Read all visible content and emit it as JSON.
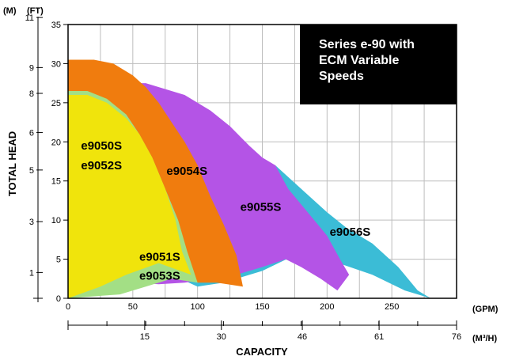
{
  "chart_data": {
    "type": "area",
    "title_lines": [
      "Series e-90 with",
      "ECM Variable",
      "Speeds"
    ],
    "xlabel": "CAPACITY",
    "ylabel": "TOTAL HEAD",
    "x_unit": "(GPM)",
    "x2_unit": "(M³/H)",
    "y_unit_ft": "(FT)",
    "y_unit_m": "(M)",
    "xlim": [
      0,
      300
    ],
    "ylim": [
      0,
      35
    ],
    "grid": true,
    "x_ticks": [
      0,
      50,
      100,
      150,
      200,
      250
    ],
    "x_tick_labels": [
      "0",
      "50",
      "100",
      "150",
      "200",
      "250"
    ],
    "x2_ticks": [
      {
        "gpm": 66.3,
        "label": "15"
      },
      {
        "gpm": 132.6,
        "label": "30"
      },
      {
        "gpm": 202.6,
        "label": "46"
      },
      {
        "gpm": 269.0,
        "label": "61"
      },
      {
        "gpm": 336.0,
        "label": "76"
      }
    ],
    "y_ticks": [
      0,
      5,
      10,
      15,
      20,
      25,
      30,
      35
    ],
    "y_tick_labels": [
      "0",
      "5",
      "10",
      "15",
      "20",
      "25",
      "30",
      "35"
    ],
    "m_ticks": [
      {
        "ft": 3.3,
        "label": "1"
      },
      {
        "ft": 9.8,
        "label": "3"
      },
      {
        "ft": 16.4,
        "label": "5"
      },
      {
        "ft": 21.2,
        "label": "6"
      },
      {
        "ft": 26.2,
        "label": "8"
      },
      {
        "ft": 29.5,
        "label": "9"
      },
      {
        "ft": 35.9,
        "label": "11"
      }
    ],
    "series": [
      {
        "name": "e9056S",
        "color": "#3bbcd6",
        "label_pos": [
          202,
          8
        ],
        "polygon": [
          [
            80,
            3
          ],
          [
            100,
            8
          ],
          [
            120,
            13
          ],
          [
            140,
            18
          ],
          [
            160,
            17
          ],
          [
            180,
            14
          ],
          [
            200,
            11
          ],
          [
            215,
            9
          ],
          [
            235,
            7
          ],
          [
            255,
            4
          ],
          [
            270,
            1
          ],
          [
            280,
            0
          ],
          [
            260,
            1
          ],
          [
            235,
            3
          ],
          [
            200,
            5
          ],
          [
            175,
            5.5
          ],
          [
            150,
            3.5
          ],
          [
            120,
            2
          ],
          [
            100,
            1.5
          ],
          [
            80,
            3
          ]
        ]
      },
      {
        "name": "e9055S",
        "color": "#b454e6",
        "label_pos": [
          133,
          11.2
        ],
        "polygon": [
          [
            35,
            26
          ],
          [
            45,
            27.5
          ],
          [
            60,
            27.5
          ],
          [
            90,
            26
          ],
          [
            110,
            24
          ],
          [
            125,
            22
          ],
          [
            140,
            19.5
          ],
          [
            150,
            18
          ],
          [
            160,
            17
          ],
          [
            170,
            14
          ],
          [
            180,
            12
          ],
          [
            190,
            10
          ],
          [
            200,
            8
          ],
          [
            210,
            5
          ],
          [
            217,
            3
          ],
          [
            208,
            1
          ],
          [
            195,
            2.5
          ],
          [
            180,
            4
          ],
          [
            168,
            5
          ],
          [
            150,
            4
          ],
          [
            130,
            3
          ],
          [
            110,
            2.5
          ],
          [
            90,
            2
          ],
          [
            70,
            1.8
          ],
          [
            50,
            2
          ],
          [
            35,
            26
          ]
        ]
      },
      {
        "name": "e9054S",
        "color": "#f07c0e",
        "label_pos": [
          76,
          15.8
        ],
        "polygon": [
          [
            0,
            0
          ],
          [
            0,
            30.5
          ],
          [
            20,
            30.5
          ],
          [
            35,
            30
          ],
          [
            50,
            28.5
          ],
          [
            60,
            27
          ],
          [
            70,
            25
          ],
          [
            80,
            22.5
          ],
          [
            90,
            20
          ],
          [
            100,
            17
          ],
          [
            110,
            13
          ],
          [
            120,
            9.5
          ],
          [
            130,
            5.5
          ],
          [
            135,
            1.5
          ],
          [
            115,
            2
          ],
          [
            100,
            2
          ],
          [
            85,
            2.8
          ],
          [
            60,
            2.5
          ],
          [
            40,
            1
          ],
          [
            0,
            0
          ]
        ]
      },
      {
        "name": "e9051S / e9053S",
        "color": "#a3df85",
        "label_pos": [
          55,
          5
        ],
        "polygon": [
          [
            0,
            0
          ],
          [
            0,
            26.5
          ],
          [
            15,
            26.5
          ],
          [
            30,
            25.5
          ],
          [
            45,
            23.5
          ],
          [
            55,
            21
          ],
          [
            65,
            18
          ],
          [
            75,
            14
          ],
          [
            85,
            10
          ],
          [
            92,
            6
          ],
          [
            100,
            2
          ],
          [
            80,
            2.5
          ],
          [
            60,
            1.5
          ],
          [
            40,
            0.5
          ],
          [
            0,
            0
          ]
        ]
      },
      {
        "name": "e9050S / e9052S",
        "color": "#f0e40c",
        "label_pos": [
          10,
          19
        ],
        "polygon": [
          [
            0,
            0
          ],
          [
            0,
            26
          ],
          [
            15,
            26
          ],
          [
            30,
            25
          ],
          [
            45,
            23
          ],
          [
            55,
            21
          ],
          [
            65,
            18
          ],
          [
            75,
            14
          ],
          [
            83,
            10
          ],
          [
            88,
            6
          ],
          [
            95,
            3
          ],
          [
            70,
            4.5
          ],
          [
            45,
            3
          ],
          [
            25,
            1.5
          ],
          [
            0,
            0
          ]
        ]
      }
    ],
    "labels": [
      {
        "text": "e9050S",
        "x": 10,
        "y": 19
      },
      {
        "text": "e9052S",
        "x": 10,
        "y": 16.5
      },
      {
        "text": "e9054S",
        "x": 76,
        "y": 15.8
      },
      {
        "text": "e9055S",
        "x": 133,
        "y": 11.2
      },
      {
        "text": "e9056S",
        "x": 202,
        "y": 8
      },
      {
        "text": "e9051S",
        "x": 55,
        "y": 4.8
      },
      {
        "text": "e9053S",
        "x": 55,
        "y": 2.4
      }
    ]
  }
}
